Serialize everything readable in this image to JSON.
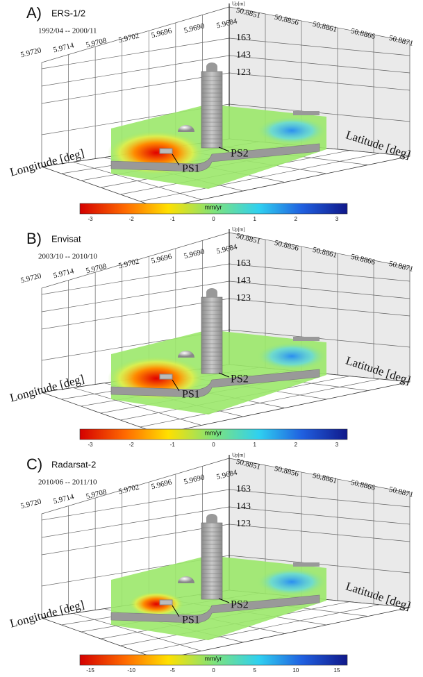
{
  "panels": [
    {
      "label": "A)",
      "sensor": "ERS-1/2",
      "period": "1992/04 -- 2000/11",
      "longitude_ticks": [
        "5.9720",
        "5.9714",
        "5.9708",
        "5.9702",
        "5.9696",
        "5.9690",
        "5.9684"
      ],
      "latitude_ticks": [
        "50.8851",
        "50.8856",
        "50.8861",
        "50.8866",
        "50.8871"
      ],
      "up_label": "Up[m]",
      "up_ticks": [
        "163",
        "143",
        "123"
      ],
      "longitude_label": "Longitude [deg]",
      "latitude_label": "Latitude [deg]",
      "points": [
        "PS1",
        "PS2"
      ],
      "colorbar": {
        "unit": "mm/yr",
        "ticks": [
          "-3",
          "-2",
          "-1",
          "0",
          "1",
          "2",
          "3"
        ]
      }
    },
    {
      "label": "B)",
      "sensor": "Envisat",
      "period": "2003/10 -- 2010/10",
      "longitude_ticks": [
        "5.9720",
        "5.9714",
        "5.9708",
        "5.9702",
        "5.9696",
        "5.9690",
        "5.9684"
      ],
      "latitude_ticks": [
        "50.8851",
        "50.8856",
        "50.8861",
        "50.8866",
        "50.8871"
      ],
      "up_label": "Up[m]",
      "up_ticks": [
        "163",
        "143",
        "123"
      ],
      "longitude_label": "Longitude [deg]",
      "latitude_label": "Latitude [deg]",
      "points": [
        "PS1",
        "PS2"
      ],
      "colorbar": {
        "unit": "mm/yr",
        "ticks": [
          "-3",
          "-2",
          "-1",
          "0",
          "1",
          "2",
          "3"
        ]
      }
    },
    {
      "label": "C)",
      "sensor": "Radarsat-2",
      "period": "2010/06 -- 2011/10",
      "longitude_ticks": [
        "5.9720",
        "5.9714",
        "5.9708",
        "5.9702",
        "5.9696",
        "5.9690",
        "5.9684"
      ],
      "latitude_ticks": [
        "50.8851",
        "50.8856",
        "50.8861",
        "50.8866",
        "50.8871"
      ],
      "up_label": "Up[m]",
      "up_ticks": [
        "163",
        "143",
        "123"
      ],
      "longitude_label": "Longitude [deg]",
      "latitude_label": "Latitude [deg]",
      "points": [
        "PS1",
        "PS2"
      ],
      "colorbar": {
        "unit": "mm/yr",
        "ticks": [
          "-15",
          "-10",
          "-5",
          "0",
          "5",
          "10",
          "15"
        ]
      }
    }
  ]
}
